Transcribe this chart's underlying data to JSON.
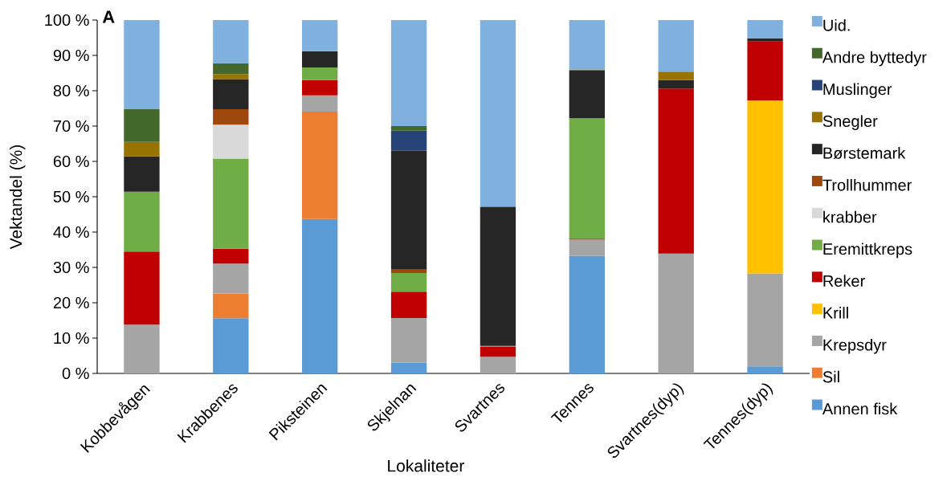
{
  "chart_data": {
    "type": "bar",
    "stacked": true,
    "xlabel": "Lokaliteter",
    "ylabel": "Vektandel (%)",
    "annotations": [
      "A"
    ],
    "categories": [
      "Kobbevågen",
      "Krabbenes",
      "Piksteinen",
      "Skjelnan",
      "Svartnes",
      "Tennes",
      "Svartnes(dyp)",
      "Tennes(dyp)"
    ],
    "ylim": [
      0,
      100
    ],
    "yticks": [
      {
        "value": 0,
        "label": "0 %"
      },
      {
        "value": 10,
        "label": "10 %"
      },
      {
        "value": 20,
        "label": "20 %"
      },
      {
        "value": 30,
        "label": "30 %"
      },
      {
        "value": 40,
        "label": "40 %"
      },
      {
        "value": 50,
        "label": "50 %"
      },
      {
        "value": 60,
        "label": "60 %"
      },
      {
        "value": 70,
        "label": "70 %"
      },
      {
        "value": 80,
        "label": "80 %"
      },
      {
        "value": 90,
        "label": "90 %"
      },
      {
        "value": 100,
        "label": "100 %"
      }
    ],
    "legend": "right",
    "series": [
      {
        "name": "Annen fisk",
        "color": "#5b9bd5",
        "values": [
          0,
          15.6,
          43.7,
          3.0,
          0,
          33.3,
          0,
          2.0
        ]
      },
      {
        "name": "Sil",
        "color": "#ed7d31",
        "values": [
          0,
          7.0,
          30.4,
          0,
          0,
          0,
          0,
          0
        ]
      },
      {
        "name": "Krepsdyr",
        "color": "#a5a5a5",
        "values": [
          13.8,
          8.5,
          4.6,
          12.7,
          4.7,
          4.6,
          33.9,
          26.3
        ]
      },
      {
        "name": "Krill",
        "color": "#ffc000",
        "values": [
          0,
          0,
          0,
          0,
          0,
          0,
          0,
          49.0
        ]
      },
      {
        "name": "Reker",
        "color": "#c00000",
        "values": [
          20.7,
          4.2,
          4.3,
          7.4,
          2.9,
          0.2,
          46.7,
          16.6
        ]
      },
      {
        "name": "Eremittkreps",
        "color": "#70ad47",
        "values": [
          16.9,
          25.5,
          3.6,
          5.3,
          0.2,
          34.1,
          0,
          0
        ]
      },
      {
        "name": "krabber",
        "color": "#d9d9d9",
        "values": [
          0,
          9.6,
          0,
          0,
          0,
          0,
          0,
          0
        ]
      },
      {
        "name": "Trollhummer",
        "color": "#9e480e",
        "values": [
          0,
          4.4,
          0,
          1.0,
          0,
          0,
          0,
          0
        ]
      },
      {
        "name": "Børstemark",
        "color": "#262626",
        "values": [
          10.0,
          8.5,
          4.6,
          33.6,
          39.3,
          13.5,
          2.4,
          0.9
        ]
      },
      {
        "name": "Snegler",
        "color": "#997300",
        "values": [
          4.1,
          1.4,
          0,
          0,
          0.2,
          0.3,
          2.4,
          0
        ]
      },
      {
        "name": "Muslinger",
        "color": "#264478",
        "values": [
          0,
          0,
          0,
          5.7,
          0,
          0,
          0,
          0
        ]
      },
      {
        "name": "Andre byttedyr",
        "color": "#43682b",
        "values": [
          9.4,
          3.1,
          0,
          1.3,
          0,
          0,
          0,
          0
        ]
      },
      {
        "name": "Uid.",
        "color": "#7fb0de",
        "values": [
          25.1,
          12.2,
          8.8,
          30.0,
          52.7,
          14.0,
          14.6,
          5.2
        ]
      }
    ]
  }
}
